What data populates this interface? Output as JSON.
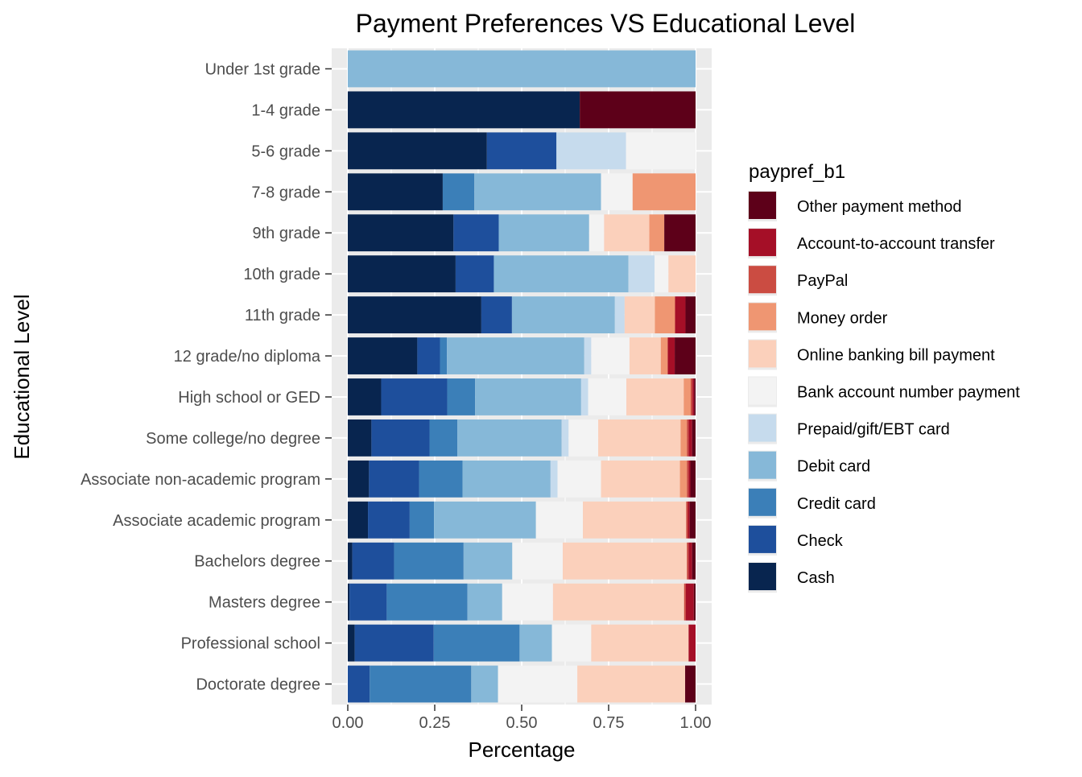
{
  "chart_data": {
    "type": "bar",
    "orientation": "horizontal",
    "stacked": true,
    "title": "Payment Preferences VS Educational Level",
    "xlabel": "Percentage",
    "ylabel": "Educational Level",
    "xlim": [
      0,
      1
    ],
    "x_ticks": [
      "0.00",
      "0.25",
      "0.50",
      "0.75",
      "1.00"
    ],
    "grid": true,
    "legend": {
      "title": "paypref_b1",
      "position": "right"
    },
    "categories": [
      "Under 1st grade",
      "1-4 grade",
      "5-6 grade",
      "7-8 grade",
      "9th grade",
      "10th grade",
      "11th grade",
      "12 grade/no diploma",
      "High school or GED",
      "Some college/no degree",
      "Associate non-academic program",
      "Associate academic program",
      "Bachelors degree",
      "Masters degree",
      "Professional school",
      "Doctorate degree"
    ],
    "series": [
      {
        "name": "Cash",
        "color": "#08254f",
        "values": [
          0,
          0.667,
          0.4,
          0.273,
          0.304,
          0.31,
          0.384,
          0.2,
          0.096,
          0.068,
          0.061,
          0.058,
          0.013,
          0.005,
          0.02,
          0
        ]
      },
      {
        "name": "Check",
        "color": "#1e4f9c",
        "values": [
          0,
          0,
          0.2,
          0,
          0.13,
          0.11,
          0.088,
          0.065,
          0.19,
          0.167,
          0.144,
          0.12,
          0.12,
          0.107,
          0.227,
          0.063
        ]
      },
      {
        "name": "Credit card",
        "color": "#3b7fb8",
        "values": [
          0,
          0,
          0,
          0.091,
          0,
          0,
          0,
          0.02,
          0.08,
          0.08,
          0.125,
          0.07,
          0.2,
          0.232,
          0.247,
          0.292
        ]
      },
      {
        "name": "Debit card",
        "color": "#86b8d8",
        "values": [
          1.0,
          0,
          0,
          0.364,
          0.26,
          0.387,
          0.296,
          0.395,
          0.305,
          0.3,
          0.253,
          0.293,
          0.14,
          0.1,
          0.093,
          0.077
        ]
      },
      {
        "name": "Prepaid/gift/EBT card",
        "color": "#c6dbed",
        "values": [
          0,
          0,
          0.2,
          0,
          0,
          0.075,
          0.028,
          0.02,
          0.02,
          0.02,
          0.02,
          0,
          0,
          0,
          0,
          0
        ]
      },
      {
        "name": "Bank account number payment",
        "color": "#f3f3f3",
        "values": [
          0,
          0,
          0.2,
          0.091,
          0.043,
          0.04,
          0,
          0.11,
          0.11,
          0.085,
          0.125,
          0.135,
          0.145,
          0.146,
          0.113,
          0.228
        ]
      },
      {
        "name": "Online banking bill payment",
        "color": "#fbd0bb",
        "values": [
          0,
          0,
          0,
          0,
          0.13,
          0.078,
          0.087,
          0.09,
          0.165,
          0.237,
          0.227,
          0.297,
          0.357,
          0.377,
          0.28,
          0.31
        ]
      },
      {
        "name": "Money order",
        "color": "#ef9672",
        "values": [
          0,
          0,
          0,
          0.181,
          0.043,
          0,
          0.058,
          0.02,
          0.02,
          0.018,
          0.02,
          0,
          0,
          0,
          0,
          0
        ]
      },
      {
        "name": "PayPal",
        "color": "#cb4c42",
        "values": [
          0,
          0,
          0,
          0,
          0,
          0,
          0,
          0,
          0.005,
          0.005,
          0.005,
          0.005,
          0.005,
          0.005,
          0,
          0
        ]
      },
      {
        "name": "Account-to-account transfer",
        "color": "#a50f27",
        "values": [
          0,
          0,
          0,
          0,
          0,
          0,
          0.03,
          0.02,
          0.005,
          0.01,
          0.005,
          0.005,
          0.01,
          0.023,
          0.02,
          0
        ]
      },
      {
        "name": "Other payment method",
        "color": "#5d0019",
        "values": [
          0,
          0.333,
          0,
          0,
          0.09,
          0,
          0.029,
          0.06,
          0.004,
          0.01,
          0.015,
          0.017,
          0.01,
          0.005,
          0,
          0.03
        ]
      }
    ]
  }
}
